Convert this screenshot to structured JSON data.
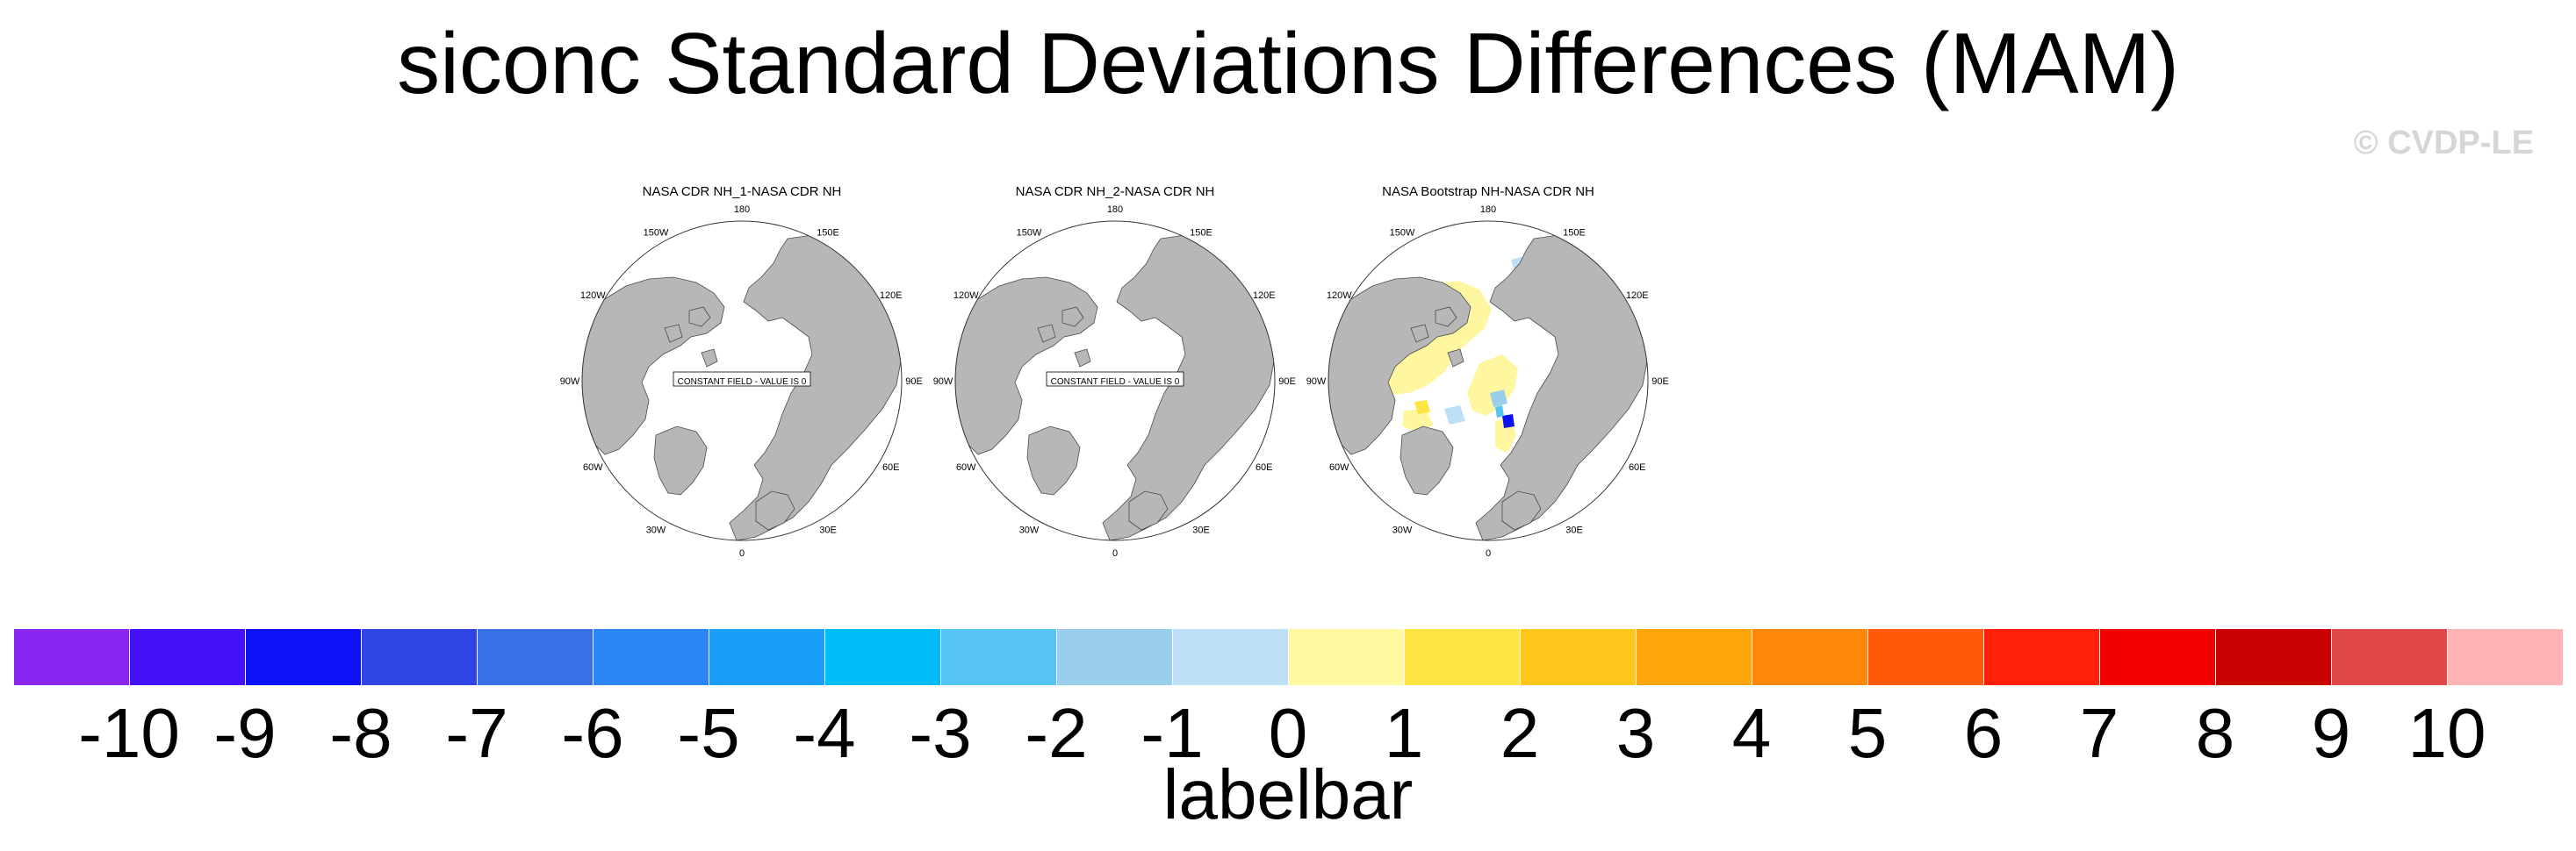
{
  "title": "siconc Standard Deviations Differences (MAM)",
  "watermark": "© CVDP-LE",
  "panels": [
    {
      "title": "NASA CDR NH_1-NASA CDR NH",
      "constant_label": "CONSTANT FIELD - VALUE IS 0",
      "has_field": false
    },
    {
      "title": "NASA CDR NH_2-NASA CDR NH",
      "constant_label": "CONSTANT FIELD - VALUE IS 0",
      "has_field": false
    },
    {
      "title": "NASA Bootstrap NH-NASA CDR NH",
      "constant_label": "",
      "has_field": true
    }
  ],
  "map_labels": {
    "lon_180": "180",
    "lon_150e": "150E",
    "lon_120e": "120E",
    "lon_90e": "90E",
    "lon_60e": "60E",
    "lon_30e": "30E",
    "lon_0": "0",
    "lon_30w": "30W",
    "lon_60w": "60W",
    "lon_90w": "90W",
    "lon_120w": "120W",
    "lon_150w": "150W"
  },
  "colors": {
    "land": "#b7b7b7",
    "ocean": "#ffffff",
    "coast": "#4a4a4a"
  },
  "labelbar": {
    "label": "labelbar",
    "ticks": [
      "-10",
      "-9",
      "-8",
      "-7",
      "-6",
      "-5",
      "-4",
      "-3",
      "-2",
      "-1",
      "0",
      "1",
      "2",
      "3",
      "4",
      "5",
      "6",
      "7",
      "8",
      "9",
      "10"
    ],
    "colors": [
      "#8a24f0",
      "#4410f5",
      "#0c12f5",
      "#2f44e2",
      "#3a70e6",
      "#2b85f5",
      "#1a9ef7",
      "#00bcf8",
      "#55c4f2",
      "#9acfec",
      "#bde0f5",
      "#fff9a0",
      "#ffe542",
      "#ffc61c",
      "#ffa60a",
      "#ff880a",
      "#ff5a0a",
      "#ff200a",
      "#f00000",
      "#c80000",
      "#e04848",
      "#ffb3b3"
    ]
  }
}
